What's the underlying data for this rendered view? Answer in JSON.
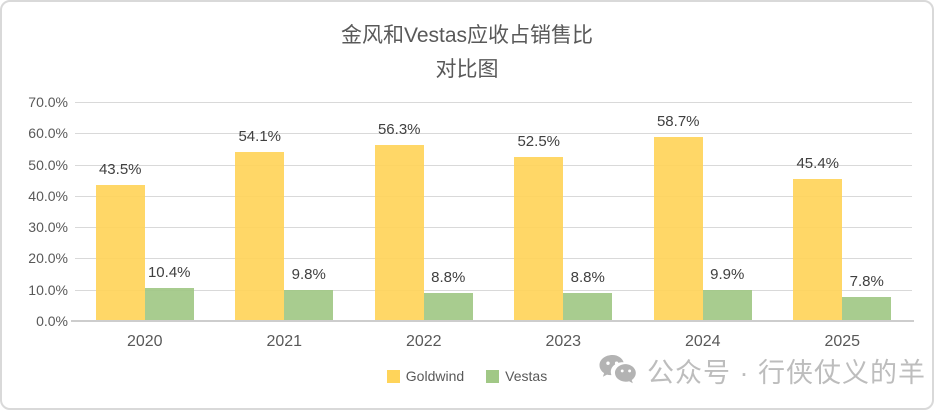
{
  "title": {
    "line1": "金风和Vestas应收占销售比",
    "line2": "对比图"
  },
  "chart_data": {
    "type": "bar",
    "title": "金风和Vestas应收占销售比 对比图",
    "categories": [
      "2020",
      "2021",
      "2022",
      "2023",
      "2024",
      "2025"
    ],
    "series": [
      {
        "name": "Goldwind",
        "color": "#FFD45A",
        "values": [
          43.5,
          54.1,
          56.3,
          52.5,
          58.7,
          45.4
        ],
        "data_labels": [
          "43.5%",
          "54.1%",
          "56.3%",
          "52.5%",
          "58.7%",
          "45.4%"
        ]
      },
      {
        "name": "Vestas",
        "color": "#A1C886",
        "values": [
          10.4,
          9.8,
          8.8,
          8.8,
          9.9,
          7.8
        ],
        "data_labels": [
          "10.4%",
          "9.8%",
          "8.8%",
          "8.8%",
          "9.9%",
          "7.8%"
        ]
      }
    ],
    "xlabel": "",
    "ylabel": "",
    "ylim": [
      0,
      70
    ],
    "ytick_step": 10,
    "ytick_labels": [
      "0.0%",
      "10.0%",
      "20.0%",
      "30.0%",
      "40.0%",
      "50.0%",
      "60.0%",
      "70.0%"
    ],
    "grid": true,
    "legend_position": "bottom"
  },
  "legend": {
    "items": [
      {
        "label": "Goldwind",
        "color": "#FFD45A"
      },
      {
        "label": "Vestas",
        "color": "#A1C886"
      }
    ]
  },
  "watermark": {
    "icon": "wechat-icon",
    "icon_color": "#b3b3b3",
    "text": "公众号 · 行侠仗义的羊",
    "text_color": "#bdbdbd"
  },
  "style_colors": {
    "title_text": "#595959",
    "axis_labels": "#595959",
    "data_labels": "#404040",
    "gridline": "#d9d9d9",
    "axis_line": "#cdcdcd",
    "frame_border": "#d9d9d9",
    "background": "#ffffff"
  }
}
